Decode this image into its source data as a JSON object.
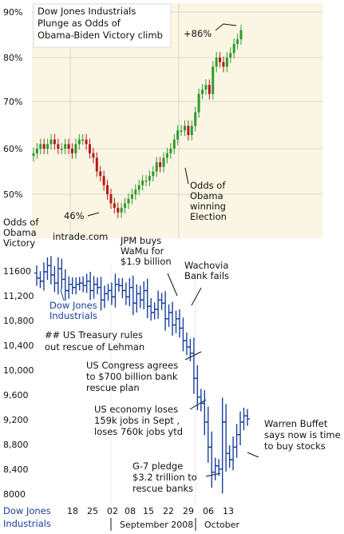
{
  "colors": {
    "top_bg": "#fbf5e3",
    "up": "#2f9a2f",
    "down": "#b51818",
    "dow": "#1a3f9a",
    "grid": "#cccccc"
  },
  "top_panel": {
    "title_lines": [
      "Dow Jones Industrials",
      "Plunge as Odds of",
      "Obama-Biden Victory climb"
    ],
    "y_ticks": [
      "90%",
      "80%",
      "70%",
      "60%",
      "50%"
    ],
    "side_label_lines": [
      "Odds of",
      "Obama",
      "Victory"
    ],
    "source": "intrade.com",
    "annotation_low": "46%",
    "annotation_high": "+86%",
    "annotation_lines": [
      "Odds of",
      "Obama",
      "winning",
      "Election"
    ]
  },
  "bottom_panel": {
    "y_ticks": [
      "11600",
      "11,200",
      "10,800",
      "10,400",
      "10,000",
      "9,600",
      "9,200",
      "8,800",
      "8,400",
      "8000"
    ],
    "series_label_lines": [
      "Dow Jones",
      "Industrials"
    ],
    "corner_label_lines": [
      "Dow Jones",
      "Industrials"
    ],
    "x_ticks": [
      "18",
      "25",
      "02",
      "08",
      "15",
      "22",
      "29",
      "06",
      "13"
    ],
    "month_labels": [
      "September 2008",
      "October"
    ],
    "annotations": {
      "jpm": [
        "JPM buys",
        "WaMu for",
        "$1.9 billion"
      ],
      "wachovia": [
        "Wachovia",
        "Bank fails"
      ],
      "lehman": [
        "## US Treasury rules",
        "out rescue of Lehman"
      ],
      "congress": [
        "US Congress agrees",
        "to $700 billion bank",
        "rescue plan"
      ],
      "jobs": [
        "US economy loses",
        "159k jobs in Sept ,",
        "loses 760k jobs ytd"
      ],
      "buffet": [
        "Warren Buffet",
        "says now is time",
        "to buy stocks"
      ],
      "g7": [
        "G-7 pledge",
        "$3.2 trillion to",
        "rescue banks"
      ]
    }
  },
  "chart_data": [
    {
      "type": "candlestick",
      "title": "Dow Jones Industrials Plunge as Odds of Obama-Biden Victory climb",
      "ylabel": "Odds of Obama Victory",
      "ylim": [
        40,
        92
      ],
      "unit": "%",
      "series": [
        {
          "name": "Odds of Obama winning Election",
          "values": [
            59,
            60,
            61,
            60,
            61,
            62,
            61,
            60,
            60,
            61,
            60,
            59,
            61,
            62,
            62,
            61,
            59,
            58,
            55,
            54,
            52,
            50,
            48,
            47,
            46,
            47,
            48,
            49,
            50,
            51,
            52,
            53,
            53,
            54,
            55,
            57,
            56,
            58,
            59,
            60,
            62,
            64,
            64,
            65,
            63,
            65,
            68,
            72,
            73,
            74,
            72,
            78,
            80,
            79,
            78,
            80,
            81,
            83,
            84,
            86
          ]
        }
      ]
    },
    {
      "type": "candlestick",
      "title": "",
      "ylabel": "Dow Jones Industrials",
      "ylim": [
        7850,
        11900
      ],
      "x_ticks": [
        "18",
        "25",
        "02",
        "08",
        "15",
        "22",
        "29",
        "06",
        "13"
      ],
      "series": [
        {
          "name": "Dow Jones Industrials",
          "values": [
            11500,
            11450,
            11600,
            11700,
            11550,
            11420,
            11650,
            11480,
            11300,
            11400,
            11350,
            11400,
            11420,
            11380,
            11450,
            11300,
            11400,
            11350,
            11150,
            11250,
            11300,
            11200,
            11400,
            11380,
            11300,
            11200,
            11350,
            11100,
            11250,
            11150,
            11300,
            11050,
            10950,
            11000,
            11150,
            11100,
            10850,
            10950,
            10750,
            10850,
            10700,
            10500,
            10400,
            10300,
            9900,
            9600,
            9500,
            9200,
            8800,
            8400,
            8500,
            8450,
            9200,
            8700,
            8600,
            8800,
            9000,
            9200,
            9300,
            9250
          ]
        }
      ]
    }
  ]
}
